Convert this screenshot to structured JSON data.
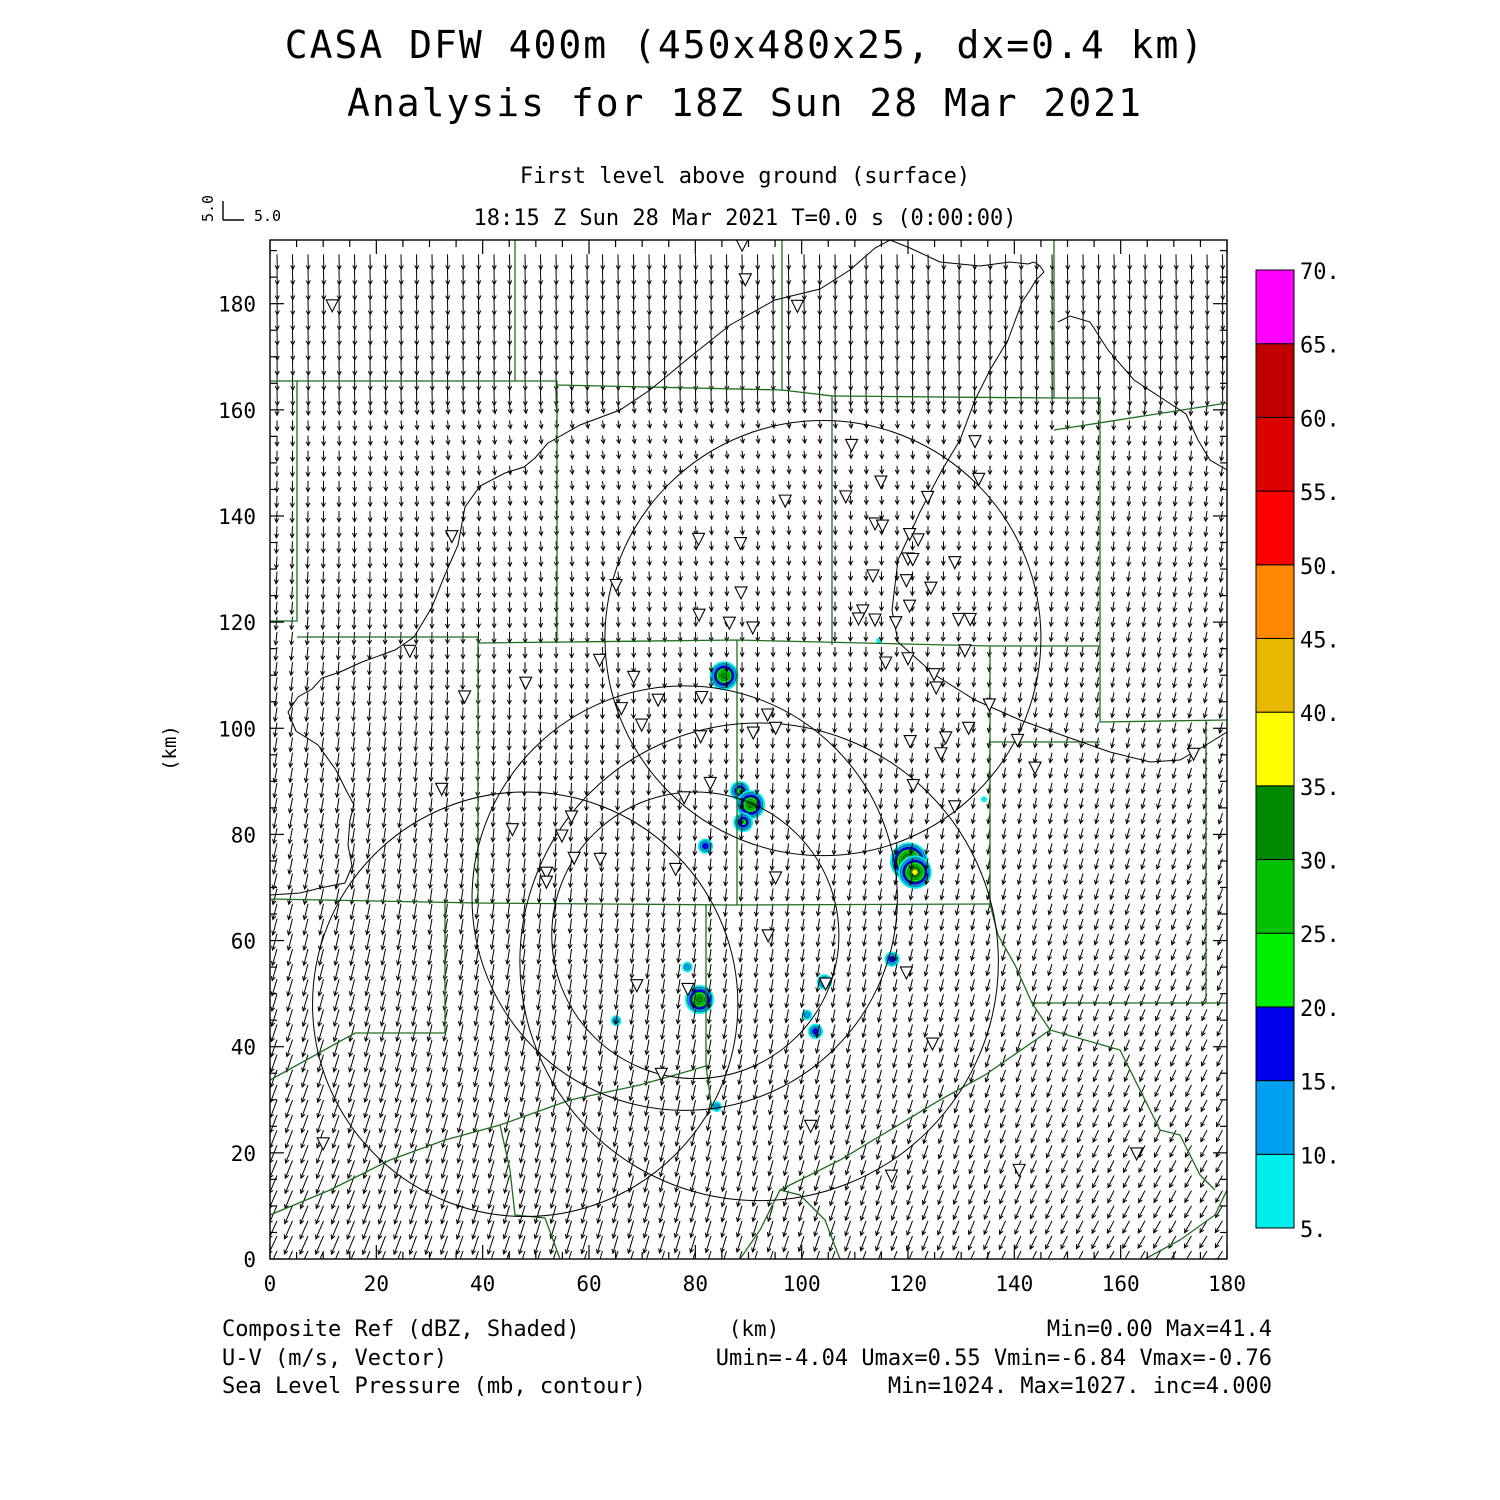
{
  "title": {
    "line1": "CASA DFW 400m (450x480x25, dx=0.4 km)",
    "line2": "Analysis for 18Z Sun 28 Mar 2021"
  },
  "subtitle": {
    "level": "First level above ground (surface)",
    "time": "18:15 Z Sun 28 Mar 2021    T=0.0 s (0:00:00)"
  },
  "vector_scale": {
    "u_label": "5.0",
    "v_label": "5.0"
  },
  "axes": {
    "x_label": "(km)",
    "y_label": "(km)",
    "x_ticks": [
      "0",
      "20",
      "40",
      "60",
      "80",
      "100",
      "120",
      "140",
      "160",
      "180"
    ],
    "y_ticks": [
      "0",
      "20",
      "40",
      "60",
      "80",
      "100",
      "120",
      "140",
      "160",
      "180"
    ],
    "x_range": [
      0,
      180
    ],
    "y_range": [
      0,
      192
    ]
  },
  "colorbar": {
    "labels": [
      "5.",
      "10.",
      "15.",
      "20.",
      "25.",
      "30.",
      "35.",
      "40.",
      "45.",
      "50.",
      "55.",
      "60.",
      "65.",
      "70."
    ],
    "colors": [
      "#00eeee",
      "#00a0f0",
      "#0000ee",
      "#00ee00",
      "#00c000",
      "#008800",
      "#ffff00",
      "#e6b800",
      "#ff8800",
      "#ff0000",
      "#dd0000",
      "#c00000",
      "#ff00ff"
    ]
  },
  "footer": {
    "field1": "Composite Ref (dBZ, Shaded)",
    "field1_stats": "Min=0.00 Max=41.4",
    "field2": "U-V (m/s, Vector)",
    "field2_stats": "Umin=-4.04 Umax=0.55 Vmin=-6.84 Vmax=-0.76",
    "field3": "Sea Level Pressure (mb, contour)",
    "field3_stats": "Min=1024. Max=1027. inc=4.000",
    "units": "(km)"
  },
  "map_data": {
    "radar_rings": [
      {
        "cx": 80,
        "cy": 61,
        "r": 27
      },
      {
        "cx": 48,
        "cy": 48,
        "r": 40
      },
      {
        "cx": 78,
        "cy": 68,
        "r": 40
      },
      {
        "cx": 92,
        "cy": 56,
        "r": 45
      },
      {
        "cx": 104,
        "cy": 117,
        "r": 41
      }
    ],
    "echoes": [
      {
        "x": 85.4,
        "y": 109.9,
        "dbz": 32
      },
      {
        "x": 88.4,
        "y": 88.2,
        "dbz": 22
      },
      {
        "x": 90.4,
        "y": 85.6,
        "dbz": 32
      },
      {
        "x": 89.0,
        "y": 82.3,
        "dbz": 20
      },
      {
        "x": 81.9,
        "y": 77.8,
        "dbz": 18
      },
      {
        "x": 120.2,
        "y": 74.9,
        "dbz": 41
      },
      {
        "x": 121.3,
        "y": 72.9,
        "dbz": 38
      },
      {
        "x": 117.0,
        "y": 56.5,
        "dbz": 18
      },
      {
        "x": 104.3,
        "y": 52.2,
        "dbz": 18
      },
      {
        "x": 78.5,
        "y": 55.0,
        "dbz": 12
      },
      {
        "x": 80.8,
        "y": 48.9,
        "dbz": 30
      },
      {
        "x": 101.0,
        "y": 46.0,
        "dbz": 10
      },
      {
        "x": 102.6,
        "y": 42.9,
        "dbz": 16
      },
      {
        "x": 65.1,
        "y": 44.9,
        "dbz": 10
      },
      {
        "x": 84.0,
        "y": 28.7,
        "dbz": 10
      },
      {
        "x": 114.6,
        "y": 116.5,
        "dbz": 8
      },
      {
        "x": 134.3,
        "y": 86.6,
        "dbz": 8
      }
    ],
    "stations": [
      [
        88.8,
        191.0
      ],
      [
        89.4,
        184.5
      ],
      [
        99.2,
        179.5
      ],
      [
        11.7,
        179.6
      ],
      [
        34.2,
        136.1
      ],
      [
        26.3,
        114.5
      ],
      [
        36.6,
        105.9
      ],
      [
        48.1,
        108.5
      ],
      [
        62.0,
        112.8
      ],
      [
        68.4,
        109.6
      ],
      [
        73.0,
        105.3
      ],
      [
        81.2,
        105.8
      ],
      [
        66.1,
        103.7
      ],
      [
        69.9,
        100.6
      ],
      [
        80.7,
        121.3
      ],
      [
        86.4,
        119.8
      ],
      [
        90.8,
        118.9
      ],
      [
        65.1,
        126.9
      ],
      [
        80.6,
        135.6
      ],
      [
        88.5,
        134.8
      ],
      [
        88.6,
        125.5
      ],
      [
        96.9,
        142.8
      ],
      [
        109.4,
        153.3
      ],
      [
        108.3,
        143.6
      ],
      [
        114.9,
        146.4
      ],
      [
        113.8,
        138.5
      ],
      [
        115.2,
        138.1
      ],
      [
        120.3,
        136.5
      ],
      [
        121.9,
        135.5
      ],
      [
        120.0,
        131.9
      ],
      [
        120.9,
        131.8
      ],
      [
        123.7,
        143.5
      ],
      [
        128.8,
        131.2
      ],
      [
        119.7,
        127.8
      ],
      [
        124.3,
        126.4
      ],
      [
        113.4,
        128.7
      ],
      [
        111.5,
        122.1
      ],
      [
        110.7,
        120.6
      ],
      [
        113.8,
        120.4
      ],
      [
        117.7,
        119.9
      ],
      [
        120.3,
        123.0
      ],
      [
        129.5,
        120.5
      ],
      [
        131.7,
        120.5
      ],
      [
        130.7,
        114.6
      ],
      [
        115.8,
        112.3
      ],
      [
        120.0,
        113.1
      ],
      [
        124.9,
        110.1
      ],
      [
        125.3,
        107.6
      ],
      [
        131.4,
        100.0
      ],
      [
        127.1,
        98.2
      ],
      [
        126.2,
        95.2
      ],
      [
        120.4,
        97.5
      ],
      [
        121.0,
        89.2
      ],
      [
        128.8,
        85.2
      ],
      [
        135.3,
        104.4
      ],
      [
        132.6,
        154.0
      ],
      [
        133.3,
        146.9
      ],
      [
        140.6,
        97.7
      ],
      [
        143.9,
        92.5
      ],
      [
        173.7,
        95.1
      ],
      [
        93.6,
        102.5
      ],
      [
        95.1,
        100.0
      ],
      [
        90.9,
        99.1
      ],
      [
        81.0,
        98.4
      ],
      [
        82.8,
        89.6
      ],
      [
        77.9,
        86.9
      ],
      [
        45.6,
        80.9
      ],
      [
        56.7,
        83.3
      ],
      [
        54.9,
        79.7
      ],
      [
        32.3,
        88.5
      ],
      [
        57.2,
        75.5
      ],
      [
        62.1,
        75.3
      ],
      [
        52.0,
        72.7
      ],
      [
        52.0,
        71.0
      ],
      [
        76.3,
        73.4
      ],
      [
        95.1,
        71.8
      ],
      [
        93.7,
        60.9
      ],
      [
        69.0,
        51.5
      ],
      [
        78.6,
        50.8
      ],
      [
        104.5,
        51.8
      ],
      [
        119.7,
        53.9
      ],
      [
        124.6,
        40.5
      ],
      [
        73.6,
        34.8
      ],
      [
        101.7,
        25.0
      ],
      [
        163.0,
        19.8
      ],
      [
        140.9,
        16.7
      ],
      [
        116.9,
        15.6
      ],
      [
        10.0,
        21.7
      ]
    ]
  }
}
